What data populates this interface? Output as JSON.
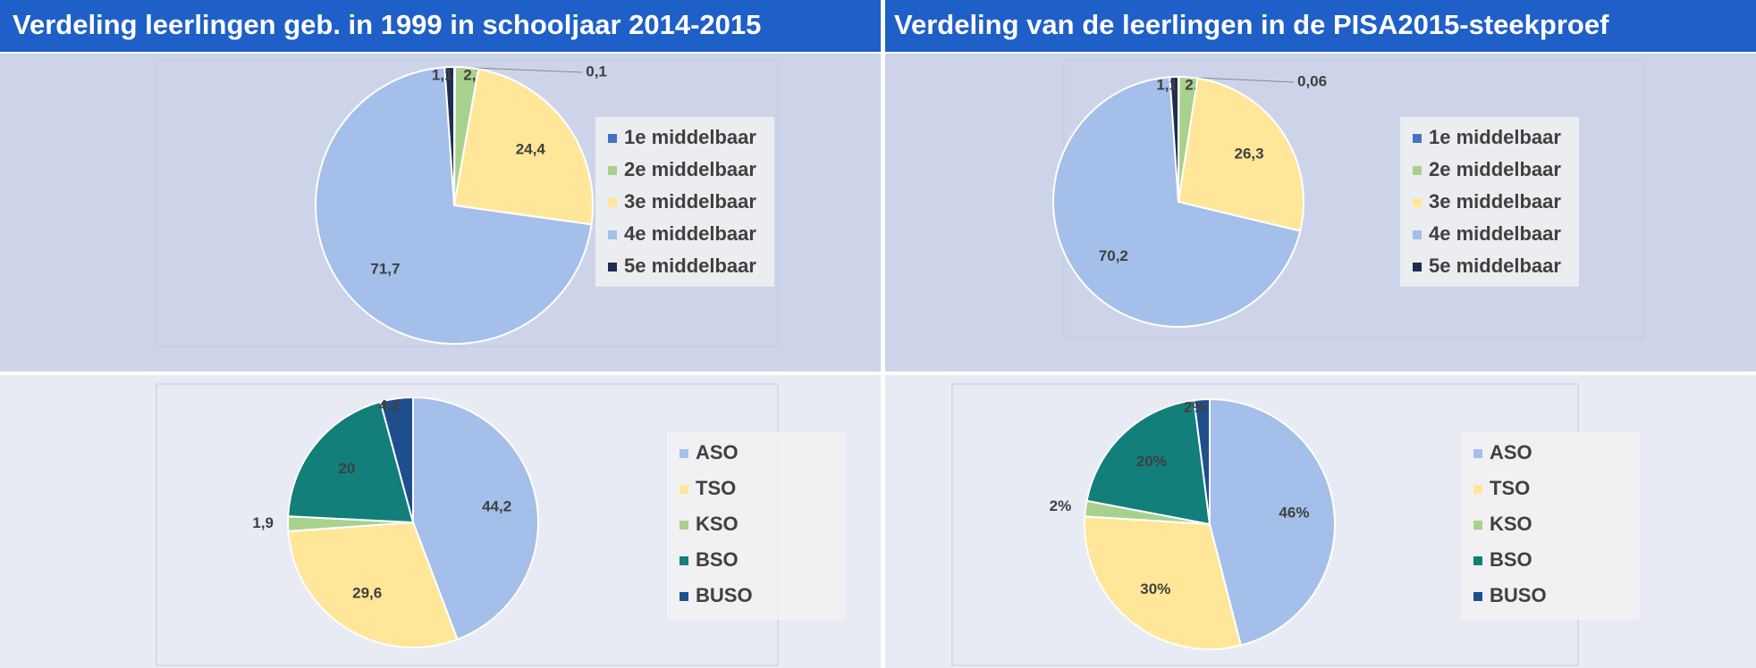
{
  "chart_data": [
    {
      "type": "pie",
      "title": "Verdeling leerlingen geb. in 1999 in schooljaar 2014-2015",
      "categories": [
        "1e middelbaar",
        "2e middelbaar",
        "3e middelbaar",
        "4e middelbaar",
        "5e middelbaar"
      ],
      "values": [
        0.1,
        2.7,
        24.4,
        71.7,
        1.1
      ],
      "value_labels": [
        "0,1",
        "2,7",
        "24,4",
        "71,7",
        "1,1"
      ],
      "colors": [
        "#4472c4",
        "#a9d18e",
        "#ffe699",
        "#a4bfe9",
        "#1f2d50"
      ]
    },
    {
      "type": "pie",
      "title": "Verdeling van de leerlingen in de PISA2015-steekproef",
      "categories": [
        "1e middelbaar",
        "2e middelbaar",
        "3e middelbaar",
        "4e middelbaar",
        "5e middelbaar"
      ],
      "values": [
        0.06,
        2.4,
        26.3,
        70.2,
        1.1
      ],
      "value_labels": [
        "0,06",
        "2,4",
        "26,3",
        "70,2",
        "1,1"
      ],
      "colors": [
        "#4472c4",
        "#a9d18e",
        "#ffe699",
        "#a4bfe9",
        "#1f2d50"
      ]
    },
    {
      "type": "pie",
      "categories": [
        "ASO",
        "TSO",
        "KSO",
        "BSO",
        "BUSO"
      ],
      "values": [
        44.2,
        29.6,
        1.9,
        20,
        4.2
      ],
      "value_labels": [
        "44,2",
        "29,6",
        "1,9",
        "20",
        "4,2"
      ],
      "colors": [
        "#a4bfe9",
        "#ffe699",
        "#a9d18e",
        "#127f7b",
        "#1f4e8c"
      ]
    },
    {
      "type": "pie",
      "categories": [
        "ASO",
        "TSO",
        "KSO",
        "BSO",
        "BUSO"
      ],
      "values": [
        46,
        30,
        2,
        20,
        2
      ],
      "value_labels": [
        "46%",
        "30%",
        "2%",
        "20%",
        "2%"
      ],
      "colors": [
        "#a4bfe9",
        "#ffe699",
        "#a9d18e",
        "#127f7b",
        "#1f4e8c"
      ]
    }
  ]
}
